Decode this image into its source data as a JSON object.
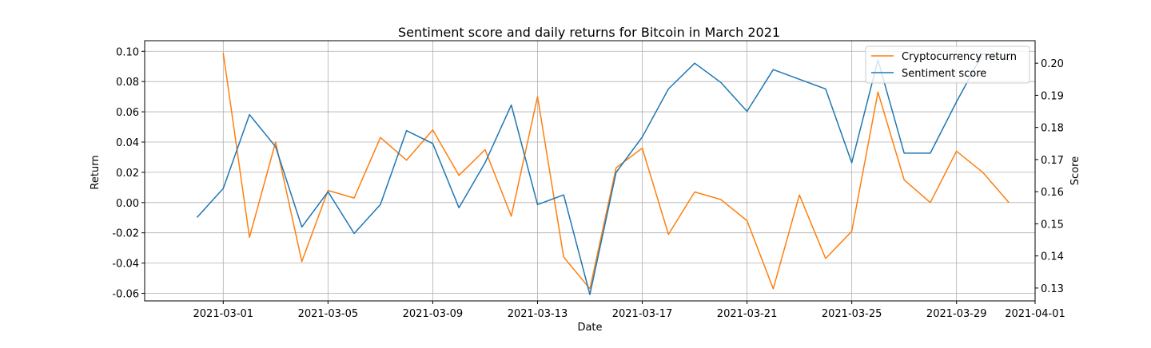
{
  "chart_data": {
    "type": "line",
    "title": "Sentiment score and daily returns for Bitcoin in March 2021",
    "xlabel": "Date",
    "ylabel": "Return",
    "y2label": "Score",
    "grid": true,
    "legend_placement": "top-right",
    "xlim": [
      "2021-02-26",
      "2021-04-01"
    ],
    "ylim": [
      -0.065,
      0.107
    ],
    "y2lim": [
      0.126,
      0.207
    ],
    "x_ticks": [
      "2021-03-01",
      "2021-03-05",
      "2021-03-09",
      "2021-03-13",
      "2021-03-17",
      "2021-03-21",
      "2021-03-25",
      "2021-03-29",
      "2021-04-01"
    ],
    "y_ticks": [
      "-0.06",
      "-0.04",
      "-0.02",
      "0.00",
      "0.02",
      "0.04",
      "0.06",
      "0.08",
      "0.10"
    ],
    "y2_ticks": [
      "0.13",
      "0.14",
      "0.15",
      "0.16",
      "0.17",
      "0.18",
      "0.19",
      "0.20"
    ],
    "series": [
      {
        "name": "Cryptocurrency return",
        "color": "#ff7f0e",
        "axis": "left",
        "x": [
          "2021-03-01",
          "2021-03-02",
          "2021-03-03",
          "2021-03-04",
          "2021-03-05",
          "2021-03-06",
          "2021-03-07",
          "2021-03-08",
          "2021-03-09",
          "2021-03-10",
          "2021-03-11",
          "2021-03-12",
          "2021-03-13",
          "2021-03-14",
          "2021-03-15",
          "2021-03-16",
          "2021-03-17",
          "2021-03-18",
          "2021-03-19",
          "2021-03-20",
          "2021-03-21",
          "2021-03-22",
          "2021-03-23",
          "2021-03-24",
          "2021-03-25",
          "2021-03-26",
          "2021-03-27",
          "2021-03-28",
          "2021-03-29",
          "2021-03-30",
          "2021-03-31"
        ],
        "values": [
          0.099,
          -0.023,
          0.04,
          -0.039,
          0.008,
          0.003,
          0.043,
          0.028,
          0.048,
          0.018,
          0.035,
          -0.009,
          0.07,
          -0.036,
          -0.057,
          0.023,
          0.036,
          -0.021,
          0.007,
          0.002,
          -0.012,
          -0.057,
          0.005,
          -0.037,
          -0.019,
          0.073,
          0.015,
          0.0,
          0.034,
          0.02,
          0.0
        ]
      },
      {
        "name": "Sentiment score",
        "color": "#1f77b4",
        "axis": "right",
        "x": [
          "2021-02-28",
          "2021-03-01",
          "2021-03-02",
          "2021-03-03",
          "2021-03-04",
          "2021-03-05",
          "2021-03-06",
          "2021-03-07",
          "2021-03-08",
          "2021-03-09",
          "2021-03-10",
          "2021-03-11",
          "2021-03-12",
          "2021-03-13",
          "2021-03-14",
          "2021-03-15",
          "2021-03-16",
          "2021-03-17",
          "2021-03-18",
          "2021-03-19",
          "2021-03-20",
          "2021-03-21",
          "2021-03-22",
          "2021-03-23",
          "2021-03-24",
          "2021-03-25",
          "2021-03-26",
          "2021-03-27",
          "2021-03-28",
          "2021-03-29",
          "2021-03-30",
          "2021-03-31"
        ],
        "values": [
          0.152,
          0.161,
          0.184,
          0.174,
          0.149,
          0.16,
          0.147,
          0.156,
          0.179,
          0.175,
          0.155,
          0.169,
          0.187,
          0.156,
          0.159,
          0.128,
          0.166,
          0.177,
          0.192,
          0.2,
          0.194,
          0.185,
          0.198,
          0.195,
          0.192,
          0.169,
          0.201,
          0.172,
          0.172,
          0.188,
          0.203,
          0.201
        ]
      }
    ]
  }
}
